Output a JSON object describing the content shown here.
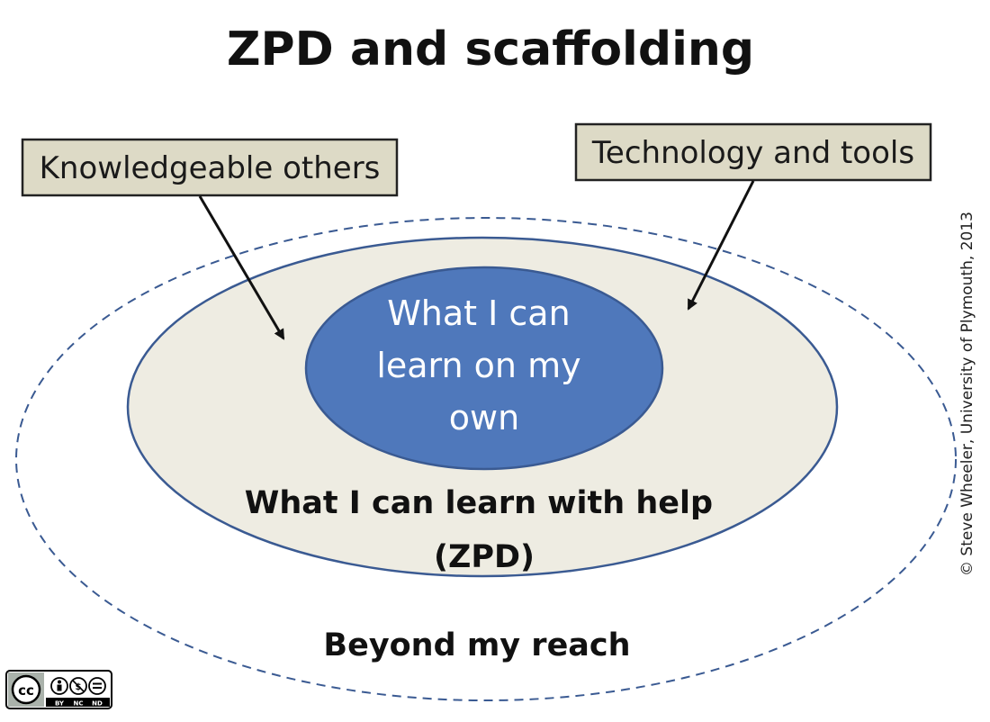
{
  "title": "ZPD and scaffolding",
  "scaffolds": {
    "left": "Knowledgeable others",
    "right": "Technology and tools"
  },
  "zones": {
    "inner_lines": [
      "What I can",
      "learn on my",
      "own"
    ],
    "middle_lines": [
      "What I can learn with help",
      "(ZPD)"
    ],
    "outer": "Beyond my reach"
  },
  "credit": "© Steve Wheeler, University of Plymouth, 2013",
  "license_badge": {
    "icons": [
      "cc-icon",
      "by-icon",
      "nc-icon",
      "nd-icon"
    ],
    "labels": [
      "BY",
      "NC",
      "ND"
    ]
  },
  "colors": {
    "inner_fill": "#4f78bb",
    "middle_fill": "#eeece2",
    "box_fill": "#dddac6",
    "outline": "#3a5a92"
  }
}
